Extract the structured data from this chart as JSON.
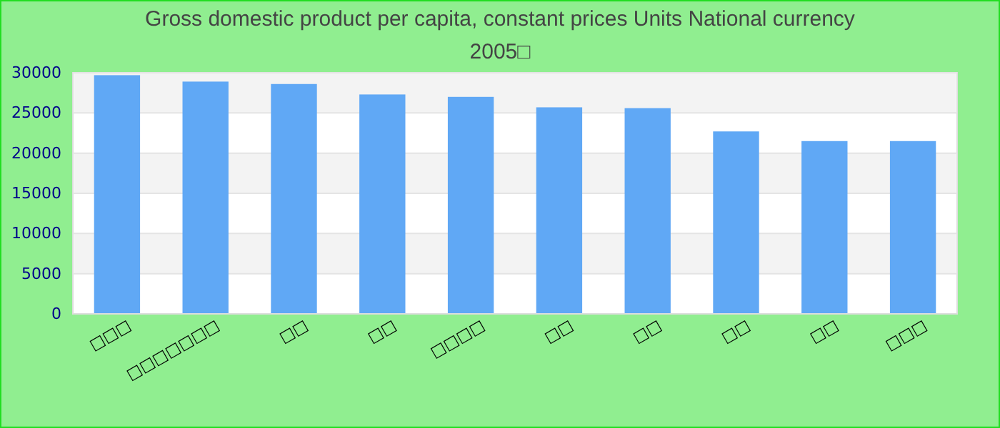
{
  "chart_data": {
    "type": "bar",
    "title": "Gross domestic product per capita, constant prices Units National currency 2005□",
    "categories": [
      "□□□",
      "□□□□□□□",
      "□□",
      "□□",
      "□□□□",
      "□□",
      "□□",
      "□□",
      "□□",
      "□□□"
    ],
    "values": [
      29700,
      28900,
      28600,
      27300,
      27000,
      25700,
      25600,
      22700,
      21500,
      21500
    ],
    "color": "#60a8f5",
    "ylim": [
      0,
      30000
    ],
    "yticks": [
      0,
      5000,
      10000,
      15000,
      20000,
      25000,
      30000
    ],
    "grid": "y"
  }
}
